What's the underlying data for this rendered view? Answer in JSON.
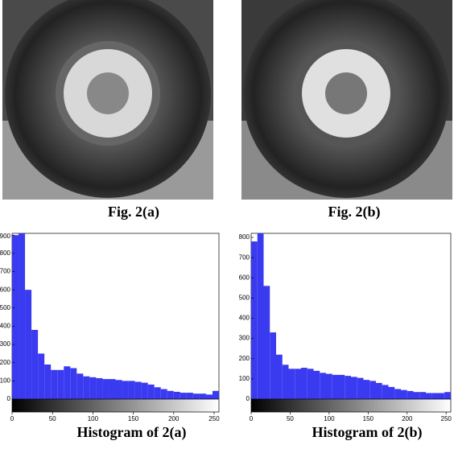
{
  "figures": [
    {
      "caption": "Fig. 2(a)"
    },
    {
      "caption": "Fig. 2(b)"
    }
  ],
  "chart_data": [
    {
      "type": "histogram",
      "caption": "Histogram of 2(a)",
      "color": "#3a3af0",
      "bins": [
        0,
        8,
        16,
        24,
        32,
        40,
        48,
        56,
        64,
        72,
        80,
        88,
        96,
        104,
        112,
        120,
        128,
        136,
        144,
        152,
        160,
        168,
        176,
        184,
        192,
        200,
        208,
        216,
        224,
        232,
        240,
        248,
        256
      ],
      "values": [
        900,
        910,
        600,
        380,
        250,
        190,
        160,
        160,
        180,
        170,
        140,
        125,
        120,
        115,
        110,
        110,
        105,
        100,
        100,
        95,
        90,
        80,
        65,
        55,
        45,
        40,
        35,
        35,
        30,
        30,
        25,
        45
      ],
      "xlim": [
        0,
        256
      ],
      "xticks": [
        0,
        50,
        100,
        150,
        200,
        250
      ],
      "ylim": [
        0,
        910
      ],
      "yticks": [
        0,
        100,
        200,
        300,
        400,
        500,
        600,
        700,
        800,
        900
      ]
    },
    {
      "type": "histogram",
      "caption": "Histogram of 2(b)",
      "color": "#3a3af0",
      "bins": [
        0,
        8,
        16,
        24,
        32,
        40,
        48,
        56,
        64,
        72,
        80,
        88,
        96,
        104,
        112,
        120,
        128,
        136,
        144,
        152,
        160,
        168,
        176,
        184,
        192,
        200,
        208,
        216,
        224,
        232,
        240,
        248,
        256
      ],
      "values": [
        780,
        820,
        560,
        330,
        220,
        170,
        150,
        150,
        155,
        150,
        140,
        130,
        125,
        120,
        120,
        115,
        110,
        105,
        95,
        90,
        80,
        70,
        60,
        50,
        45,
        40,
        35,
        35,
        30,
        30,
        30,
        35
      ],
      "xlim": [
        0,
        256
      ],
      "xticks": [
        0,
        50,
        100,
        150,
        200,
        250
      ],
      "ylim": [
        0,
        820
      ],
      "yticks": [
        0,
        100,
        200,
        300,
        400,
        500,
        600,
        700,
        800
      ]
    }
  ]
}
